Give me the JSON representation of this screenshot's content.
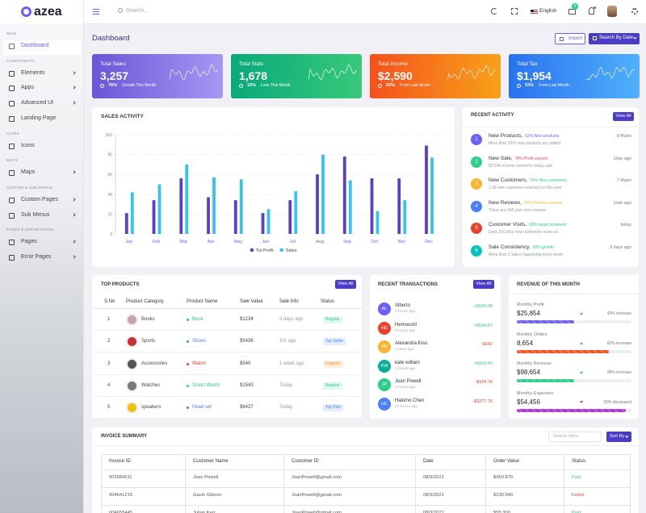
{
  "header": {
    "logo": "azea",
    "search_placeholder": "Search...",
    "language": "English",
    "notification_count": "5"
  },
  "sidebar": {
    "sections": [
      {
        "title": "MAIN",
        "items": [
          {
            "label": "Dashboard",
            "arrow": false,
            "active": true
          }
        ]
      },
      {
        "title": "COMPONENTS",
        "items": [
          {
            "label": "Elements",
            "arrow": true
          },
          {
            "label": "Apps",
            "arrow": true
          },
          {
            "label": "Advanced UI",
            "arrow": true
          },
          {
            "label": "Landing Page",
            "arrow": false
          }
        ]
      },
      {
        "title": "ICONS",
        "items": [
          {
            "label": "Icons",
            "arrow": false
          }
        ]
      },
      {
        "title": "MAPS",
        "items": [
          {
            "label": "Maps",
            "arrow": true
          }
        ]
      },
      {
        "title": "CUSTOM & SUB MENUS",
        "items": [
          {
            "label": "Custom Pages",
            "arrow": true
          },
          {
            "label": "Sub Menus",
            "arrow": true
          }
        ]
      },
      {
        "title": "PAGES & ERROR PAGES",
        "items": [
          {
            "label": "Pages",
            "arrow": true
          },
          {
            "label": "Error Pages",
            "arrow": true
          }
        ]
      }
    ]
  },
  "page": {
    "title": "Dashboard",
    "import_button": "Import",
    "date_button": "Search By Date"
  },
  "stat_cards": [
    {
      "title": "Total Sales",
      "value": "3,257",
      "percent": "76%",
      "note": "Growth This Month",
      "colors": [
        "#6a55d8",
        "#a797f2"
      ]
    },
    {
      "title": "Total Stats",
      "value": "1,678",
      "percent": "15%",
      "note": "Loss This Month",
      "colors": [
        "#09a97a",
        "#38c97a"
      ]
    },
    {
      "title": "Total Income",
      "value": "$2,590",
      "percent": "62%",
      "note": "From Last Month",
      "colors": [
        "#f4511e",
        "#f8a118"
      ]
    },
    {
      "title": "Total Tax",
      "value": "$1,954",
      "percent": "53%",
      "note": "From Last Month",
      "colors": [
        "#2a72f0",
        "#4fb0fa"
      ]
    }
  ],
  "chart_data": {
    "type": "bar",
    "title": "SALES ACTIVITY",
    "categories": [
      "Jan",
      "Feb",
      "Mar",
      "Apr",
      "May",
      "Jun",
      "Jul",
      "Aug",
      "Sep",
      "Oct",
      "Nov",
      "Dec"
    ],
    "series": [
      {
        "name": "Tot Profit",
        "color": "#5b3fc4",
        "values": [
          21,
          34,
          56,
          37,
          34,
          21,
          34,
          60,
          78,
          56,
          56,
          89
        ]
      },
      {
        "name": "Sales",
        "color": "#35c4f0",
        "values": [
          42,
          50,
          70,
          57,
          55,
          25,
          43,
          80,
          54,
          23,
          34,
          77
        ]
      }
    ],
    "ylim": [
      0,
      100
    ],
    "yticks": [
      0,
      20,
      40,
      60,
      80,
      100
    ],
    "grid": true
  },
  "recent_activity": {
    "title": "RECENT ACTIVITY",
    "button": "View All",
    "items": [
      {
        "number": "1",
        "color": "#6c5ffc",
        "title": "New Products,",
        "tag": "52% New products",
        "tag_color": "#6c5ffc",
        "desc": "More than 20% new products are added",
        "time": "9:45pm"
      },
      {
        "number": "2",
        "color": "#2dce89",
        "title": "New Sale,",
        "tag": "78% Profit earned",
        "tag_color": "#e83e8c",
        "desc": "$2,546 income earned in today sale",
        "time": "1day ago"
      },
      {
        "number": "3",
        "color": "#f7b731",
        "title": "New Customers,",
        "tag": "24% New customers",
        "tag_color": "#2dce89",
        "desc": "1.3k new customers reached us this year",
        "time": "7:45pm"
      },
      {
        "number": "4",
        "color": "#4a80f8",
        "title": "New Reviews,",
        "tag": "96% Positive reviews",
        "tag_color": "#f7b731",
        "desc": "There are 500 plus new reviews",
        "time": "1min ago"
      },
      {
        "number": "5",
        "color": "#e8422f",
        "title": "Customer Visits,",
        "tag": "58% target achieved",
        "tag_color": "#2dce89",
        "desc": "Daily 200 plus new customers visits us.",
        "time": "today"
      },
      {
        "number": "6",
        "color": "#05c3c0",
        "title": "Sale Consistency,",
        "tag": "90% growth",
        "tag_color": "#2dce89",
        "desc": "More than 5 Sales happening every week",
        "time": "3 days ago"
      }
    ]
  },
  "top_products": {
    "title": "TOP PRODUCTS",
    "button": "View All",
    "headers": [
      "S.No",
      "Product Category",
      "Product Name",
      "Sale Value",
      "Sale Info",
      "Status"
    ],
    "rows": [
      {
        "no": "1",
        "category": "Books",
        "name": "Book",
        "color": "#2dce89",
        "value": "$1234",
        "info": "3 days ago",
        "status": "Regular",
        "status_color": "#2dce89"
      },
      {
        "no": "2",
        "category": "Sports",
        "name": "Shoes",
        "color": "#4a80f8",
        "value": "$5436",
        "info": "1hr ago",
        "status": "Top Seller",
        "status_color": "#4a80f8"
      },
      {
        "no": "3",
        "category": "Accessories",
        "name": "Watch",
        "color": "#e8422f",
        "value": "$540",
        "info": "1 week ago",
        "status": "Irregular",
        "status_color": "#f7931e"
      },
      {
        "no": "4",
        "category": "Watches",
        "name": "Smart Watch",
        "color": "#2dce89",
        "value": "$1543",
        "info": "Today",
        "status": "Regular",
        "status_color": "#2dce89"
      },
      {
        "no": "5",
        "category": "speakers",
        "name": "Head set",
        "color": "#4a80f8",
        "value": "$6427",
        "info": "Today",
        "status": "Top Pick",
        "status_color": "#4a80f8"
      }
    ]
  },
  "transactions": {
    "title": "RECENT TRANSACTIONS",
    "button": "View All",
    "items": [
      {
        "initials": "AL",
        "color": "#6c5ffc",
        "name": "Alberto",
        "time": "2 hours ago",
        "amount": "+$543.98",
        "amount_color": "#2dce89"
      },
      {
        "initials": "HE",
        "color": "#e8422f",
        "name": "Hemoushi",
        "time": "5 hours ago",
        "amount": "+$534.87",
        "amount_color": "#2dce89"
      },
      {
        "initials": "AK",
        "color": "#f7b731",
        "name": "Alexandra Kiso",
        "time": "1 days ago",
        "amount": "-$182",
        "amount_color": "#e8422f"
      },
      {
        "initials": "KW",
        "color": "#09ad95",
        "name": "kate william",
        "time": "3 hours ago",
        "amount": "+$153.40",
        "amount_color": "#2dce89"
      },
      {
        "initials": "JP",
        "color": "#2dce89",
        "name": "Joan Powell",
        "time": "6 hours ago",
        "amount": "-$324.78",
        "amount_color": "#e8422f"
      },
      {
        "initials": "HC",
        "color": "#4a80f8",
        "name": "Hakimo Chen",
        "time": "21 hours ago",
        "amount": "-$3277.76",
        "amount_color": "#e8422f"
      }
    ]
  },
  "revenue": {
    "title": "REVENUE OF THIS MONTH",
    "items": [
      {
        "label": "Monthly Profit",
        "value": "$25,854",
        "change": "43% increase",
        "trend_color": "#2dce89",
        "progress": 50,
        "color": "#6c5ffc"
      },
      {
        "label": "Monthly Orders",
        "value": "8,654",
        "change": "62% increase",
        "trend_color": "#2dce89",
        "progress": 80,
        "color": "#f4511e"
      },
      {
        "label": "Monthly Revenue",
        "value": "$98,654",
        "change": "38% increase",
        "trend_color": "#2dce89",
        "progress": 50,
        "color": "#2dce89"
      },
      {
        "label": "Monthly Expenses",
        "value": "$54,456",
        "change": "30% decreased",
        "trend_color": "#e8422f",
        "progress": 95,
        "color": "#b52fd8"
      }
    ]
  },
  "invoice": {
    "title": "INVOICE SUMMARY",
    "search_placeholder": "Search Here",
    "button": "Sort By",
    "headers": [
      "Invoice ID",
      "Customer Name",
      "Customer ID",
      "Date",
      "Order Value",
      "Status"
    ],
    "rows": [
      {
        "id": "002584611",
        "name": "Joan Powell",
        "cid": "JoanPowell@gmail.com",
        "date": "08/3/2021",
        "value": "$450.870",
        "status": "Paid",
        "status_color": "#2dce89"
      },
      {
        "id": "004641215",
        "name": "Gavin Gibson",
        "cid": "JoanPowell@gmail.com",
        "date": "08/3/2021",
        "value": "$230.540",
        "status": "Failed",
        "status_color": "#e8422f"
      },
      {
        "id": "004655445",
        "name": "Julian Kerr",
        "cid": "JoanPowell@gmail.com",
        "date": "08/3/2021",
        "value": "$55.300",
        "status": "Paid",
        "status_color": "#2dce89"
      }
    ]
  }
}
